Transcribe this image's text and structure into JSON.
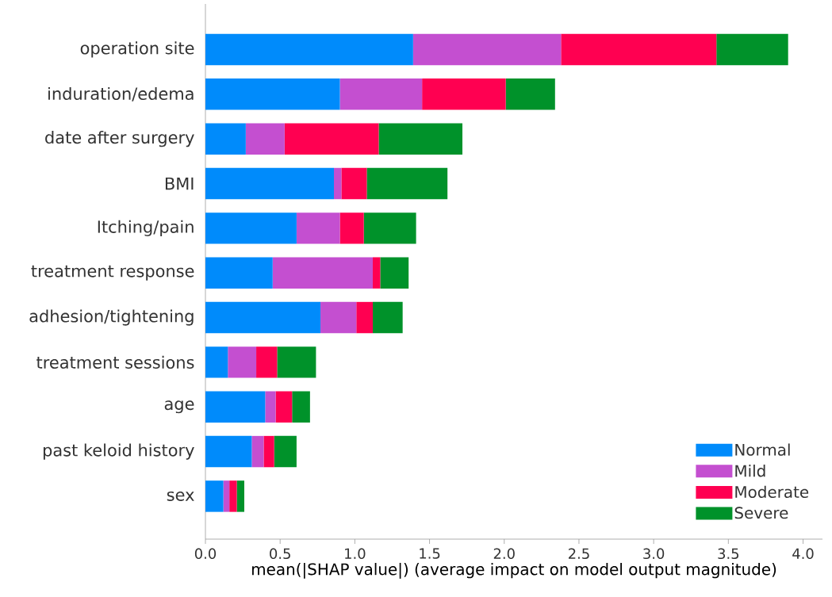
{
  "chart_data": {
    "type": "bar",
    "orientation": "horizontal",
    "stacked": true,
    "xlabel": "mean(|SHAP value|) (average impact on model output magnitude)",
    "categories": [
      "operation site",
      "induration/edema",
      "date after surgery",
      "BMI",
      "Itching/pain",
      "treatment response",
      "adhesion/tightening",
      "treatment sessions",
      "age",
      "past keloid history",
      "sex"
    ],
    "series": [
      {
        "name": "Normal",
        "color": "#008bfb",
        "values": [
          1.39,
          0.9,
          0.27,
          0.86,
          0.61,
          0.45,
          0.77,
          0.15,
          0.4,
          0.31,
          0.12
        ]
      },
      {
        "name": "Mild",
        "color": "#c44fd0",
        "values": [
          0.99,
          0.55,
          0.26,
          0.05,
          0.29,
          0.67,
          0.24,
          0.19,
          0.07,
          0.08,
          0.04
        ]
      },
      {
        "name": "Moderate",
        "color": "#ff0051",
        "values": [
          1.04,
          0.56,
          0.63,
          0.17,
          0.16,
          0.05,
          0.11,
          0.14,
          0.11,
          0.07,
          0.05
        ]
      },
      {
        "name": "Severe",
        "color": "#00922a",
        "values": [
          0.48,
          0.33,
          0.56,
          0.54,
          0.35,
          0.19,
          0.2,
          0.26,
          0.12,
          0.15,
          0.05
        ]
      }
    ],
    "xlim": [
      0,
      4.13
    ],
    "xticks": [
      {
        "value": 0,
        "label": "0.0"
      },
      {
        "value": 0.5,
        "label": "0.5"
      },
      {
        "value": 1,
        "label": "1.0"
      },
      {
        "value": 1.5,
        "label": "1.5"
      },
      {
        "value": 2,
        "label": "2.0"
      },
      {
        "value": 2.5,
        "label": "2.5"
      },
      {
        "value": 3,
        "label": "3.0"
      },
      {
        "value": 3.5,
        "label": "3.5"
      },
      {
        "value": 4,
        "label": "4.0"
      }
    ],
    "grid": false,
    "legend": "bottom right"
  }
}
